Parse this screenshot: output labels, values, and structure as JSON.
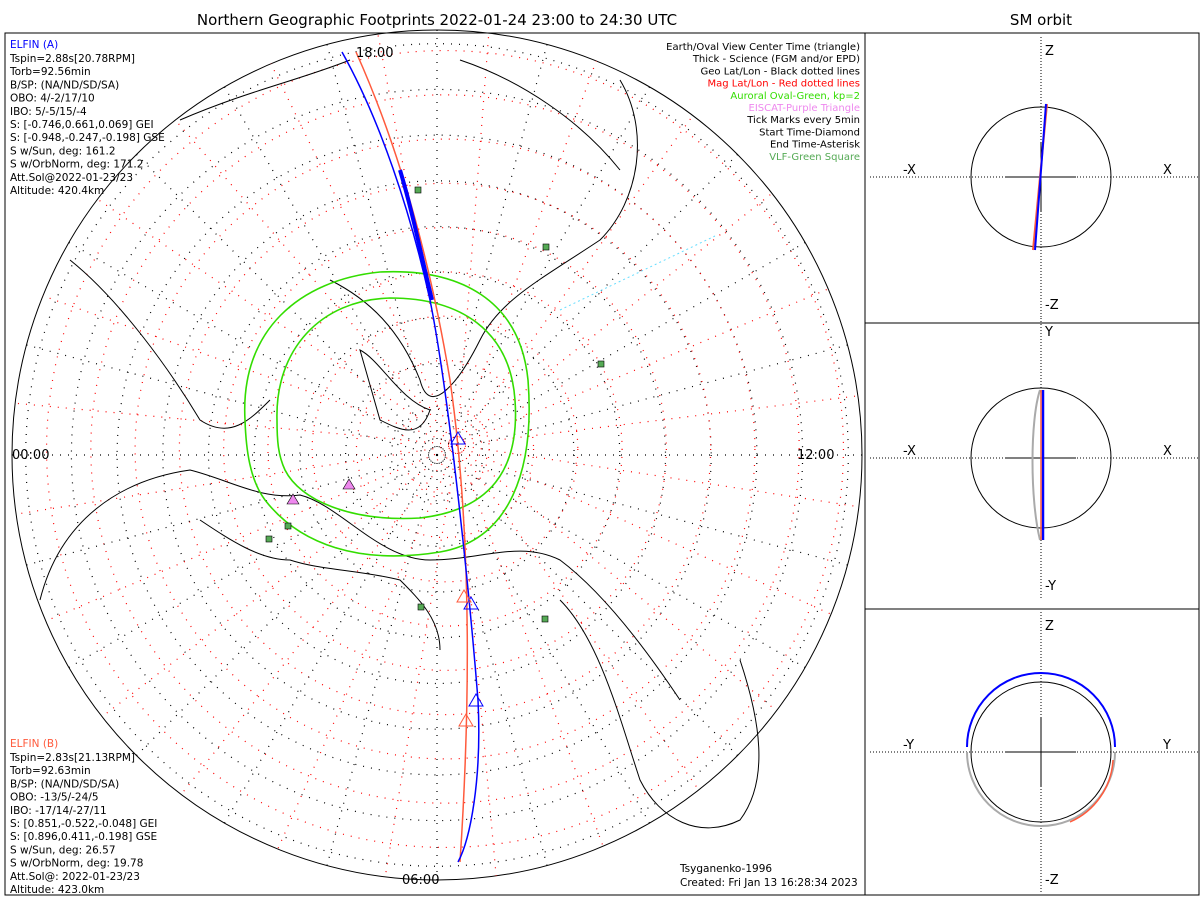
{
  "title": "Northern Geographic Footprints 2022-01-24 23:00 to 24:30 UTC",
  "side_title": "SM orbit",
  "map": {
    "time_labels": {
      "top": "18:00",
      "left": "00:00",
      "right": "12:00",
      "bottom": "06:00"
    }
  },
  "elfin_a": {
    "name": "ELFIN (A)",
    "color": "#0000ff",
    "lines": [
      "Tspin=2.88s[20.78RPM]",
      "Torb=92.56min",
      "B/SP: (NA/ND/SD/SA)",
      "OBO: 4/-2/17/10",
      "IBO: 5/-5/15/-4",
      "S: [-0.746,0.661,0.069] GEI",
      "S: [-0.948,-0.247,-0.198] GSE",
      "S w/Sun, deg: 161.2",
      "S w/OrbNorm, deg: 171.2",
      "Att.Sol@2022-01-23/23",
      "Altitude: 420.4km"
    ]
  },
  "elfin_b": {
    "name": "ELFIN (B)",
    "color": "#ff5a3c",
    "lines": [
      "Tspin=2.83s[21.13RPM]",
      "Torb=92.63min",
      "B/SP: (NA/ND/SD/SA)",
      "OBO: -13/5/-24/5",
      "IBO: -17/14/-27/11",
      "S: [0.851,-0.522,-0.048] GEI",
      "S: [0.896,0.411,-0.198] GSE",
      "S w/Sun, deg: 26.57",
      "S w/OrbNorm, deg: 19.78",
      "Att.Sol@: 2022-01-23/23",
      "Altitude: 423.0km"
    ]
  },
  "legend": [
    {
      "text": "Earth/Oval View Center Time (triangle)",
      "color": "#000000"
    },
    {
      "text": "Thick - Science (FGM and/or EPD)",
      "color": "#000000"
    },
    {
      "text": "Geo Lat/Lon - Black dotted lines",
      "color": "#000000"
    },
    {
      "text": "Mag Lat/Lon - Red dotted lines",
      "color": "#ff0000"
    },
    {
      "text": "Auroral Oval-Green, kp=2",
      "color": "#33dd00"
    },
    {
      "text": "EISCAT-Purple Triangle",
      "color": "#ee88ee"
    },
    {
      "text": "Tick Marks every 5min",
      "color": "#000000"
    },
    {
      "text": "Start Time-Diamond",
      "color": "#000000"
    },
    {
      "text": "End Time-Asterisk",
      "color": "#000000"
    },
    {
      "text": "VLF-Green Square",
      "color": "#55aa55"
    }
  ],
  "footer": {
    "model": "Tsyganenko-1996",
    "created": "Created: Fri Jan 13 16:28:34 2023"
  },
  "sm_panels": [
    {
      "top": "Z",
      "bottom": "-Z",
      "left": "-X",
      "right": "X"
    },
    {
      "top": "Y",
      "bottom": "-Y",
      "left": "-X",
      "right": "X"
    },
    {
      "top": "Z",
      "bottom": "-Z",
      "left": "-Y",
      "right": "Y"
    }
  ]
}
